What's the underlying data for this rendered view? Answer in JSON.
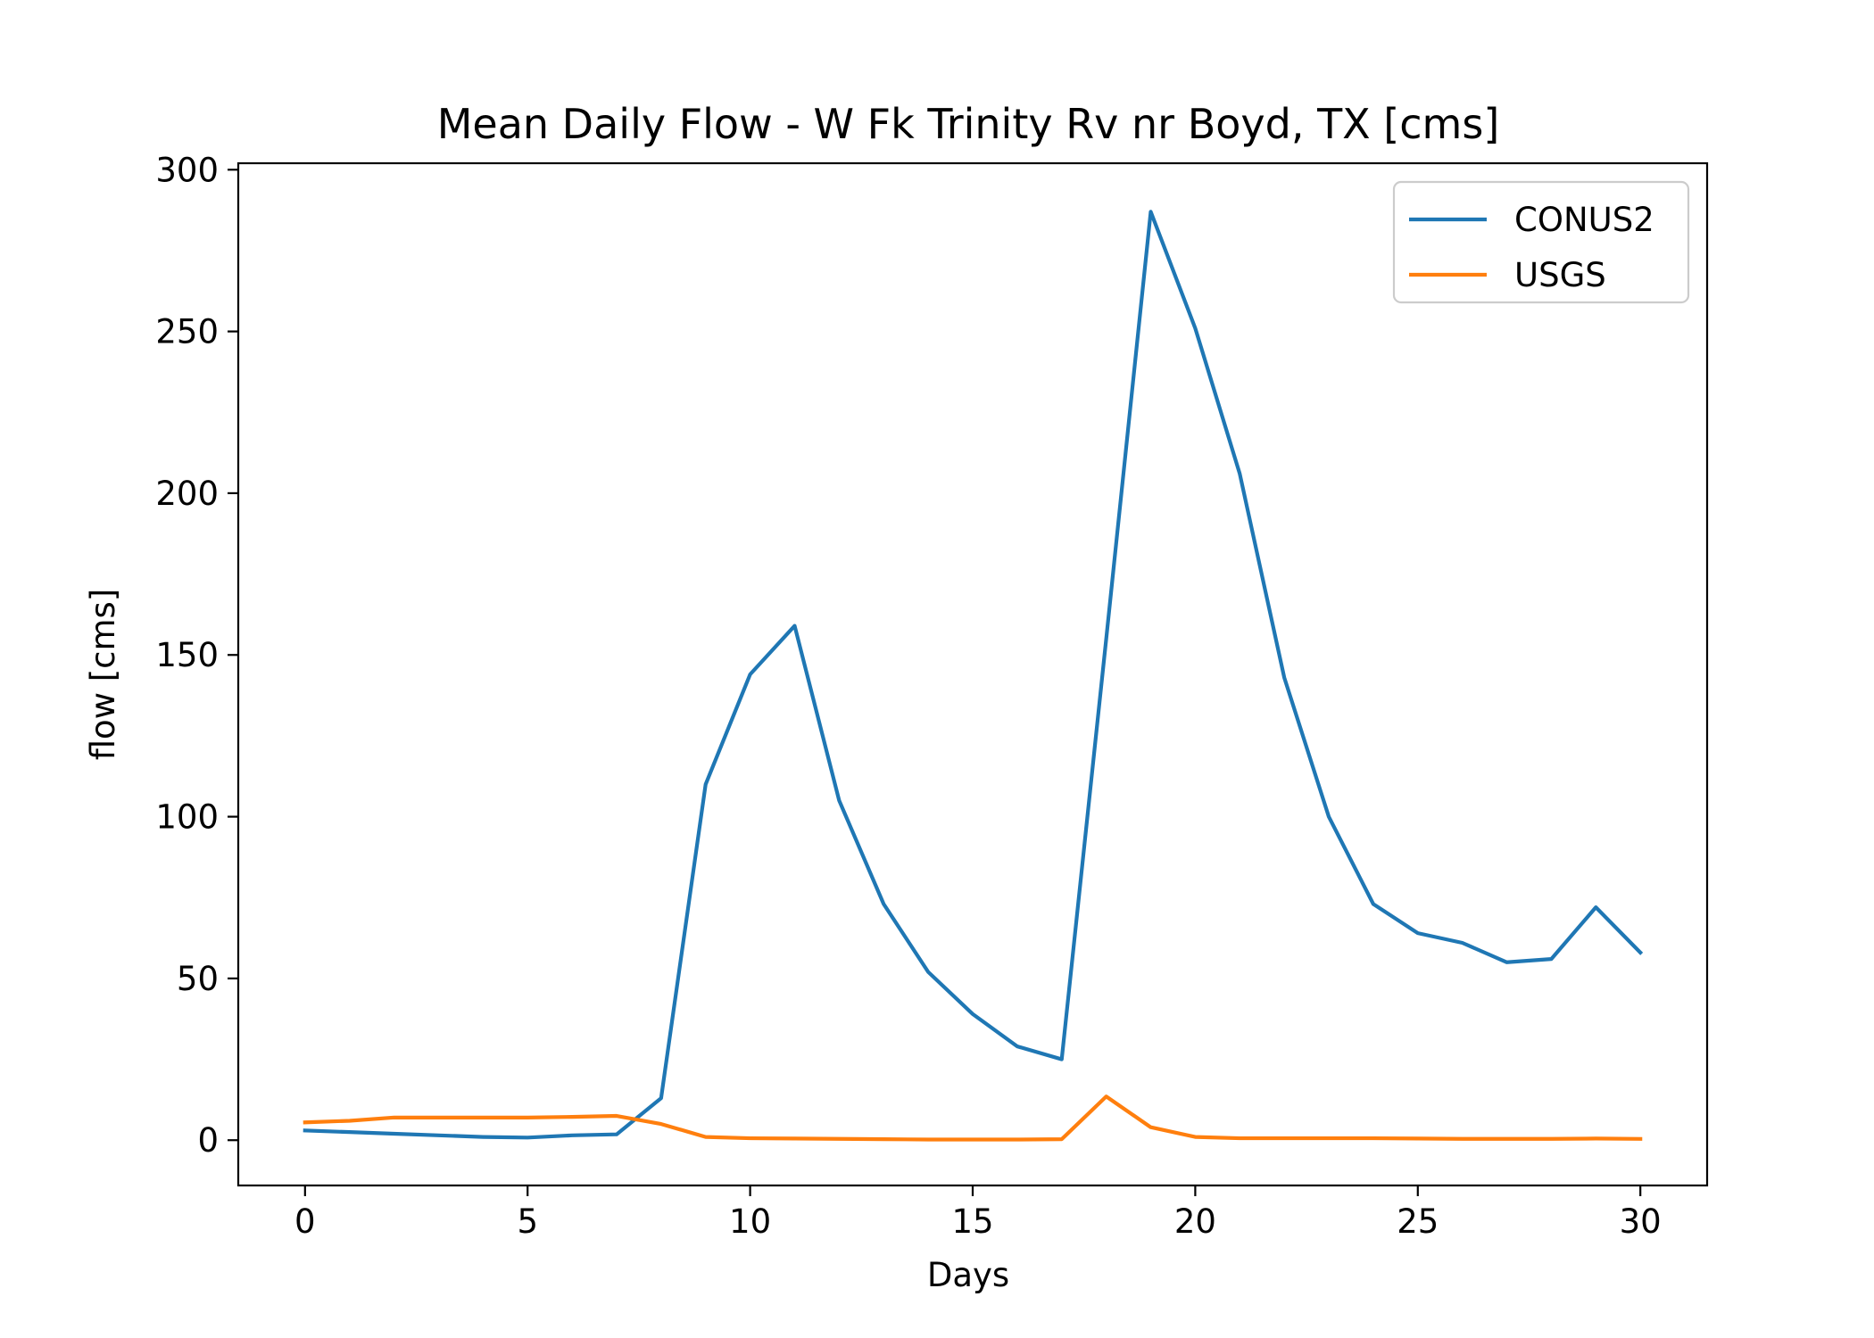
{
  "chart_data": {
    "type": "line",
    "title": "Mean Daily Flow - W Fk Trinity Rv nr Boyd, TX [cms]",
    "xlabel": "Days",
    "ylabel": "flow [cms]",
    "xlim": [
      -1.5,
      31.5
    ],
    "ylim": [
      -14,
      302
    ],
    "xticks": [
      0,
      5,
      10,
      15,
      20,
      25,
      30
    ],
    "yticks": [
      0,
      50,
      100,
      150,
      200,
      250,
      300
    ],
    "grid": false,
    "legend_position": "top-right",
    "x": [
      0,
      1,
      2,
      3,
      4,
      5,
      6,
      7,
      8,
      9,
      10,
      11,
      12,
      13,
      14,
      15,
      16,
      17,
      18,
      19,
      20,
      21,
      22,
      23,
      24,
      25,
      26,
      27,
      28,
      29,
      30
    ],
    "series": [
      {
        "name": "CONUS2",
        "color": "#1f77b4",
        "values": [
          3,
          2.5,
          2,
          1.5,
          1,
          0.8,
          1.5,
          1.8,
          13,
          110,
          144,
          159,
          105,
          73,
          52,
          39,
          29,
          25,
          155,
          287,
          251,
          206,
          143,
          100,
          73,
          64,
          61,
          55,
          56,
          72,
          58
        ]
      },
      {
        "name": "USGS",
        "color": "#ff7f0e",
        "values": [
          5.5,
          6,
          7,
          7,
          7,
          7,
          7.2,
          7.5,
          5,
          1,
          0.6,
          0.5,
          0.4,
          0.3,
          0.2,
          0.2,
          0.2,
          0.3,
          13.5,
          4,
          1,
          0.6,
          0.6,
          0.6,
          0.6,
          0.5,
          0.4,
          0.4,
          0.4,
          0.5,
          0.4
        ]
      }
    ]
  }
}
